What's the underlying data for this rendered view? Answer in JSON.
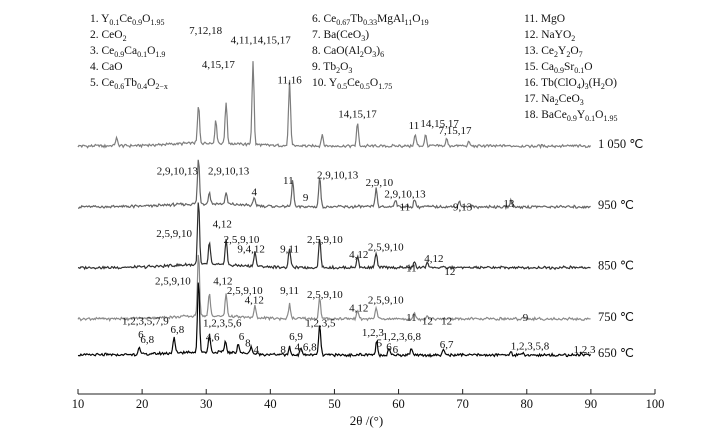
{
  "chart_data": {
    "type": "line",
    "xlabel": "2θ /(°)",
    "xlim": [
      10,
      100
    ],
    "x_ticks": [
      "10",
      "20",
      "30",
      "40",
      "50",
      "60",
      "70",
      "80",
      "90",
      "100"
    ],
    "legend": [
      {
        "n": "1.",
        "f": "Y<sub>0.1</sub>Ce<sub>0.9</sub>O<sub>1.95</sub>"
      },
      {
        "n": "2.",
        "f": "CeO<sub>2</sub>"
      },
      {
        "n": "3.",
        "f": "Ce<sub>0.9</sub>Ca<sub>0.1</sub>O<sub>1.9</sub>"
      },
      {
        "n": "4.",
        "f": "CaO"
      },
      {
        "n": "5.",
        "f": "Ce<sub>0.6</sub>Tb<sub>0.4</sub>O<sub>2−x</sub>"
      },
      {
        "n": "6.",
        "f": "Ce<sub>0.67</sub>Tb<sub>0.33</sub>MgAl<sub>11</sub>O<sub>19</sub>"
      },
      {
        "n": "7.",
        "f": "Ba(CeO<sub>3</sub>)"
      },
      {
        "n": "8.",
        "f": "CaO(Al<sub>2</sub>O<sub>3</sub>)<sub>6</sub>"
      },
      {
        "n": "9.",
        "f": "Tb<sub>2</sub>O<sub>3</sub>"
      },
      {
        "n": "10.",
        "f": "Y<sub>0.5</sub>Ce<sub>0.5</sub>O<sub>1.75</sub>"
      },
      {
        "n": "11.",
        "f": "MgO"
      },
      {
        "n": "12.",
        "f": "NaYO<sub>2</sub>"
      },
      {
        "n": "13.",
        "f": "Ce<sub>2</sub>Y<sub>2</sub>O<sub>7</sub>"
      },
      {
        "n": "15.",
        "f": "Ca<sub>0.9</sub>Sr<sub>0.1</sub>O"
      },
      {
        "n": "16.",
        "f": "Tb(ClO<sub>4</sub>)<sub>3</sub>(H<sub>2</sub>O)"
      },
      {
        "n": "17.",
        "f": "Na<sub>2</sub>CeO<sub>3</sub>"
      },
      {
        "n": "18.",
        "f": "BaCe<sub>0.9</sub>Y<sub>0.1</sub>O<sub>1.95</sub>"
      }
    ],
    "series": [
      {
        "name": "1 050 ℃",
        "color": "#7d7d7d",
        "offset": 5.5,
        "peaks": [
          [
            16,
            0.2
          ],
          [
            28.8,
            1.0
          ],
          [
            31.5,
            0.6
          ],
          [
            33.1,
            1.1
          ],
          [
            37.3,
            2.2
          ],
          [
            43.0,
            1.7
          ],
          [
            48.1,
            0.3
          ],
          [
            53.6,
            0.6
          ],
          [
            62.6,
            0.3
          ],
          [
            64.2,
            0.3
          ],
          [
            67.5,
            0.2
          ],
          [
            71,
            0.1
          ]
        ],
        "labels": [
          {
            "x": 29.9,
            "h": 2.75,
            "t": "7,12,18"
          },
          {
            "x": 31.9,
            "h": 1.85,
            "t": "4,15,17"
          },
          {
            "x": 38.5,
            "h": 2.5,
            "t": "4,11,14,15,17"
          },
          {
            "x": 43.0,
            "h": 1.45,
            "t": "11,16"
          },
          {
            "x": 53.6,
            "h": 0.55,
            "t": "14,15,17"
          },
          {
            "x": 62.4,
            "h": 0.25,
            "t": "11"
          },
          {
            "x": 66.4,
            "h": 0.3,
            "t": "14,15,17"
          },
          {
            "x": 68.8,
            "h": 0.12,
            "t": "7,15,17"
          }
        ]
      },
      {
        "name": "950 ℃",
        "color": "#646464",
        "offset": 3.9,
        "peaks": [
          [
            28.8,
            1.2
          ],
          [
            30.5,
            0.3
          ],
          [
            33.1,
            0.3
          ],
          [
            37.5,
            0.2
          ],
          [
            43.5,
            0.7
          ],
          [
            47.7,
            0.8
          ],
          [
            56.5,
            0.5
          ],
          [
            59.5,
            0.2
          ],
          [
            62.5,
            0.2
          ],
          [
            69.5,
            0.15
          ],
          [
            77.5,
            0.15
          ]
        ],
        "labels": [
          {
            "x": 25.5,
            "h": 0.65,
            "t": "2,9,10,13"
          },
          {
            "x": 33.5,
            "h": 0.65,
            "t": "2,9,10,13"
          },
          {
            "x": 37.5,
            "h": 0.1,
            "t": "4"
          },
          {
            "x": 42.8,
            "h": 0.4,
            "t": "11"
          },
          {
            "x": 45.5,
            "h": -0.05,
            "t": "9"
          },
          {
            "x": 50.5,
            "h": 0.55,
            "t": "2,9,10,13"
          },
          {
            "x": 57.0,
            "h": 0.35,
            "t": "2,9,10"
          },
          {
            "x": 61.0,
            "h": 0.05,
            "t": "2,9,10,13"
          },
          {
            "x": 61.0,
            "h": -0.3,
            "t": "11"
          },
          {
            "x": 70.0,
            "h": -0.3,
            "t": "9,13"
          },
          {
            "x": 77.2,
            "h": -0.2,
            "t": "13"
          }
        ]
      },
      {
        "name": "850 ℃",
        "color": "#2f2f2f",
        "offset": 2.3,
        "peaks": [
          [
            28.8,
            1.7
          ],
          [
            30.5,
            0.6
          ],
          [
            33.1,
            0.7
          ],
          [
            37.6,
            0.4
          ],
          [
            43.0,
            0.5
          ],
          [
            47.7,
            0.8
          ],
          [
            53.6,
            0.3
          ],
          [
            56.5,
            0.4
          ],
          [
            62.5,
            0.15
          ],
          [
            64.5,
            0.15
          ]
        ],
        "labels": [
          {
            "x": 25.0,
            "h": 0.6,
            "t": "2,5,9,10"
          },
          {
            "x": 32.5,
            "h": 0.85,
            "t": "4,12"
          },
          {
            "x": 35.5,
            "h": 0.45,
            "t": "2,5,9,10"
          },
          {
            "x": 37.0,
            "h": 0.2,
            "t": "9,4,12"
          },
          {
            "x": 43.0,
            "h": 0.2,
            "t": "9,11"
          },
          {
            "x": 48.5,
            "h": 0.45,
            "t": "2,5,9,10"
          },
          {
            "x": 53.8,
            "h": 0.05,
            "t": "4,12"
          },
          {
            "x": 58.0,
            "h": 0.25,
            "t": "2,5,9,10"
          },
          {
            "x": 62.0,
            "h": -0.3,
            "t": "11"
          },
          {
            "x": 65.5,
            "h": -0.05,
            "t": "4,12"
          },
          {
            "x": 68.0,
            "h": -0.4,
            "t": "12"
          }
        ]
      },
      {
        "name": "750 ℃",
        "color": "#8a8a8a",
        "offset": 0.95,
        "peaks": [
          [
            28.8,
            1.7
          ],
          [
            30.5,
            0.6
          ],
          [
            33.1,
            0.6
          ],
          [
            37.6,
            0.3
          ],
          [
            43.0,
            0.4
          ],
          [
            47.7,
            0.55
          ],
          [
            53.6,
            0.25
          ],
          [
            56.5,
            0.3
          ],
          [
            62.5,
            0.15
          ],
          [
            64.5,
            0.1
          ],
          [
            79.5,
            0.05
          ]
        ],
        "labels": [
          {
            "x": 24.8,
            "h": 0.7,
            "t": "2,5,9,10"
          },
          {
            "x": 32.6,
            "h": 0.7,
            "t": "4,12"
          },
          {
            "x": 36.0,
            "h": 0.45,
            "t": "2,5,9,10"
          },
          {
            "x": 37.5,
            "h": 0.2,
            "t": "4,12"
          },
          {
            "x": 43.0,
            "h": 0.45,
            "t": "9,11"
          },
          {
            "x": 48.5,
            "h": 0.35,
            "t": "2,5,9,10"
          },
          {
            "x": 53.8,
            "h": 0.0,
            "t": "4,12"
          },
          {
            "x": 58.0,
            "h": 0.2,
            "t": "2,5,9,10"
          },
          {
            "x": 62.0,
            "h": -0.25,
            "t": "11"
          },
          {
            "x": 64.5,
            "h": -0.35,
            "t": "12"
          },
          {
            "x": 67.5,
            "h": -0.35,
            "t": "12"
          },
          {
            "x": 79.8,
            "h": -0.25,
            "t": "9"
          }
        ]
      },
      {
        "name": "650 ℃",
        "color": "#050505",
        "offset": 0.0,
        "peaks": [
          [
            19.5,
            0.2
          ],
          [
            25.0,
            0.4
          ],
          [
            28.8,
            1.9
          ],
          [
            30.5,
            0.45
          ],
          [
            33.0,
            0.3
          ],
          [
            35.0,
            0.25
          ],
          [
            37.0,
            0.2
          ],
          [
            43.0,
            0.2
          ],
          [
            44.8,
            0.2
          ],
          [
            47.7,
            0.8
          ],
          [
            56.6,
            0.35
          ],
          [
            58.5,
            0.2
          ],
          [
            62.0,
            0.15
          ],
          [
            67.0,
            0.15
          ],
          [
            77.5,
            0.1
          ],
          [
            79.5,
            0.05
          ],
          [
            88.5,
            0.05
          ]
        ],
        "labels": [
          {
            "x": 20.5,
            "h": 0.6,
            "t": "1,2,3,5,7,9"
          },
          {
            "x": 19.8,
            "h": 0.25,
            "t": "6"
          },
          {
            "x": 20.8,
            "h": 0.12,
            "t": "6,8"
          },
          {
            "x": 25.5,
            "h": 0.38,
            "t": "6,8"
          },
          {
            "x": 32.5,
            "h": 0.55,
            "t": "1,2,3,5,6"
          },
          {
            "x": 31.0,
            "h": 0.18,
            "t": "4,6"
          },
          {
            "x": 35.5,
            "h": 0.2,
            "t": "6"
          },
          {
            "x": 36.5,
            "h": 0.02,
            "t": "8"
          },
          {
            "x": 37.8,
            "h": -0.15,
            "t": "4"
          },
          {
            "x": 42.0,
            "h": -0.15,
            "t": "8"
          },
          {
            "x": 44.0,
            "h": 0.2,
            "t": "6,9"
          },
          {
            "x": 45.5,
            "h": -0.08,
            "t": "4,6,8"
          },
          {
            "x": 47.8,
            "h": 0.55,
            "t": "1,2,3,5"
          },
          {
            "x": 56.0,
            "h": 0.3,
            "t": "1,2,3"
          },
          {
            "x": 60.5,
            "h": 0.2,
            "t": "1,2,3,6,8"
          },
          {
            "x": 57.0,
            "h": 0.02,
            "t": "5"
          },
          {
            "x": 58.5,
            "h": -0.08,
            "t": "6"
          },
          {
            "x": 59.5,
            "h": -0.15,
            "t": "6"
          },
          {
            "x": 67.5,
            "h": -0.02,
            "t": "6,7"
          },
          {
            "x": 80.5,
            "h": -0.05,
            "t": "1,2,3,5,8"
          },
          {
            "x": 89.0,
            "h": -0.15,
            "t": "1,2,3"
          }
        ]
      }
    ]
  }
}
